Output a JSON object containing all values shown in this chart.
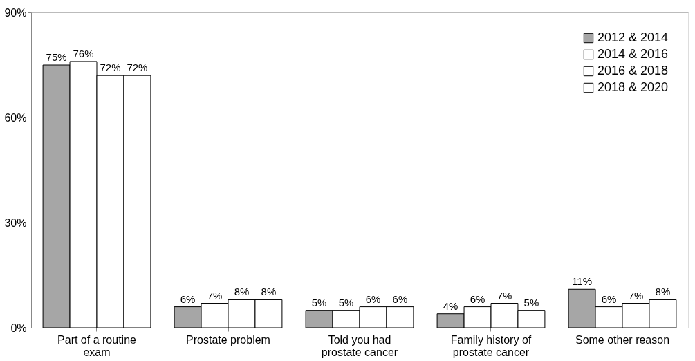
{
  "chart_data": {
    "type": "bar",
    "categories": [
      "Part of a routine exam",
      "Prostate problem",
      "Told you had prostate cancer",
      "Family history of prostate cancer",
      "Some other reason"
    ],
    "series": [
      {
        "name": "2012 & 2014",
        "color": "#a6a6a6",
        "values": [
          75,
          6,
          5,
          4,
          11
        ],
        "value_labels": [
          "75%",
          "6%",
          "5%",
          "4%",
          "11%"
        ]
      },
      {
        "name": "2014 & 2016",
        "color": "#ffffff",
        "values": [
          76,
          7,
          5,
          6,
          6
        ],
        "value_labels": [
          "76%",
          "7%",
          "5%",
          "6%",
          "6%"
        ]
      },
      {
        "name": "2016 & 2018",
        "color": "#ffffff",
        "values": [
          72,
          8,
          6,
          7,
          7
        ],
        "value_labels": [
          "72%",
          "8%",
          "6%",
          "7%",
          "7%"
        ]
      },
      {
        "name": "2018 & 2020",
        "color": "#ffffff",
        "values": [
          72,
          8,
          6,
          5,
          8
        ],
        "value_labels": [
          "72%",
          "8%",
          "6%",
          "5%",
          "8%"
        ]
      }
    ],
    "ylim": [
      0,
      90
    ],
    "yticks": [
      {
        "value": 0,
        "label": "0%"
      },
      {
        "value": 30,
        "label": "30%"
      },
      {
        "value": 60,
        "label": "60%"
      },
      {
        "value": 90,
        "label": "90%"
      }
    ],
    "grid": "y",
    "legend": "top right"
  }
}
